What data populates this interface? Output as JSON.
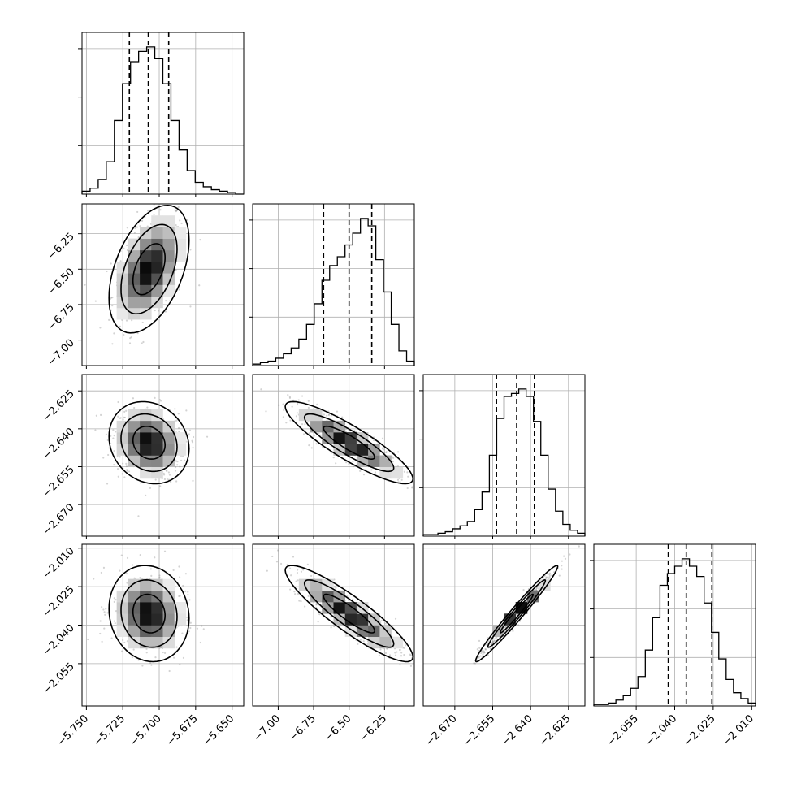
{
  "chart_data": {
    "type": "corner",
    "grid": true,
    "params": [
      {
        "ticks": [
          -5.75,
          -5.725,
          -5.7,
          -5.675,
          -5.65
        ],
        "ticklabels": [
          "−5.750",
          "−5.725",
          "−5.700",
          "−5.675",
          "−5.650"
        ],
        "range": [
          -5.753,
          -5.642
        ],
        "quantiles": [
          -5.7205,
          -5.7075,
          -5.6935
        ],
        "mean": -5.707,
        "sd": 0.011,
        "hist": [
          0.02,
          0.04,
          0.1,
          0.22,
          0.5,
          0.75,
          0.9,
          0.97,
          1.0,
          0.92,
          0.75,
          0.5,
          0.3,
          0.16,
          0.08,
          0.05,
          0.03,
          0.02,
          0.01,
          0.0
        ]
      },
      {
        "ticks": [
          -7.0,
          -6.75,
          -6.5,
          -6.25
        ],
        "ticklabels": [
          "−7.00",
          "−6.75",
          "−6.50",
          "−6.25"
        ],
        "range": [
          -7.18,
          -6.04
        ],
        "quantiles": [
          -6.68,
          -6.5,
          -6.34
        ],
        "mean": -6.5,
        "sd": 0.18,
        "hist": [
          0.01,
          0.02,
          0.03,
          0.05,
          0.08,
          0.12,
          0.18,
          0.28,
          0.42,
          0.58,
          0.68,
          0.74,
          0.82,
          0.9,
          1.0,
          0.95,
          0.72,
          0.5,
          0.28,
          0.1,
          0.03
        ]
      },
      {
        "ticks": [
          -2.67,
          -2.655,
          -2.64,
          -2.625
        ],
        "ticklabels": [
          "−2.670",
          "−2.655",
          "−2.640",
          "−2.625"
        ],
        "range": [
          -2.6825,
          -2.6185
        ],
        "quantiles": [
          -2.6535,
          -2.6455,
          -2.6385
        ],
        "mean": -2.6455,
        "sd": 0.0065,
        "hist": [
          0.01,
          0.01,
          0.02,
          0.03,
          0.05,
          0.07,
          0.1,
          0.18,
          0.3,
          0.55,
          0.8,
          0.95,
          0.97,
          1.0,
          0.95,
          0.78,
          0.55,
          0.32,
          0.17,
          0.08,
          0.04,
          0.02
        ]
      },
      {
        "ticks": [
          -2.055,
          -2.04,
          -2.025,
          -2.01
        ],
        "ticklabels": [
          "−2.055",
          "−2.040",
          "−2.025",
          "−2.010"
        ],
        "range": [
          -2.0715,
          -2.0085
        ],
        "quantiles": [
          -2.0425,
          -2.0355,
          -2.0255
        ],
        "mean": -2.0355,
        "sd": 0.0075,
        "hist": [
          0.01,
          0.01,
          0.02,
          0.04,
          0.07,
          0.12,
          0.2,
          0.38,
          0.6,
          0.82,
          0.9,
          0.95,
          1.0,
          0.95,
          0.88,
          0.7,
          0.5,
          0.32,
          0.18,
          0.09,
          0.05,
          0.02
        ]
      }
    ],
    "correlations": [
      [
        1,
        0.45,
        -0.15,
        -0.1
      ],
      [
        0.45,
        1,
        -0.88,
        -0.9
      ],
      [
        -0.15,
        -0.88,
        1,
        0.98
      ],
      [
        -0.1,
        -0.9,
        0.98,
        1
      ]
    ]
  }
}
